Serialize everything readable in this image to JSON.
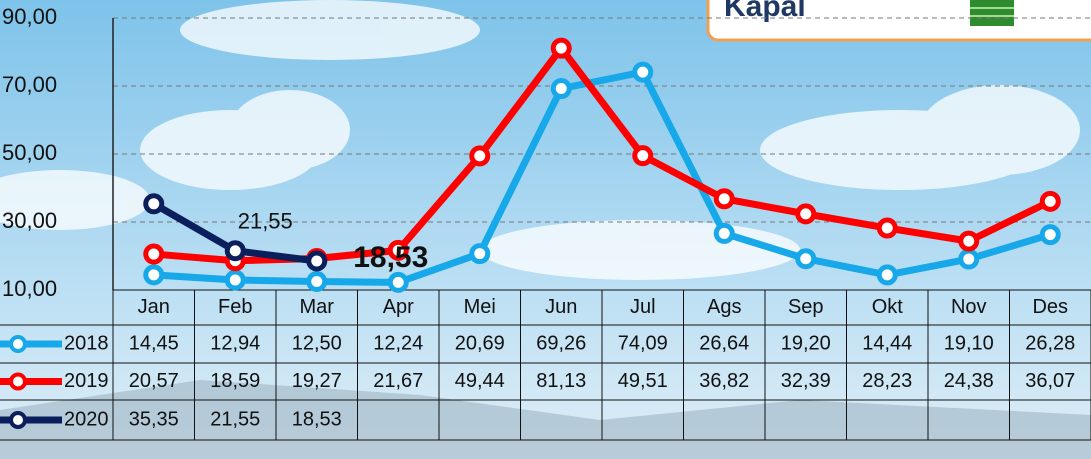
{
  "chart_data": {
    "type": "line",
    "categories": [
      "Jan",
      "Feb",
      "Mar",
      "Apr",
      "Mei",
      "Jun",
      "Jul",
      "Ags",
      "Sep",
      "Okt",
      "Nov",
      "Des"
    ],
    "series": [
      {
        "name": "2018",
        "color": "#16a8e8",
        "values": [
          14.45,
          12.94,
          12.5,
          12.24,
          20.69,
          69.26,
          74.09,
          26.64,
          19.2,
          14.44,
          19.1,
          26.28
        ],
        "value_labels": [
          "14,45",
          "12,94",
          "12,50",
          "12,24",
          "20,69",
          "69,26",
          "74,09",
          "26,64",
          "19,20",
          "14,44",
          "19,10",
          "26,28"
        ]
      },
      {
        "name": "2019",
        "color": "#ff0000",
        "values": [
          20.57,
          18.59,
          19.27,
          21.67,
          49.44,
          81.13,
          49.51,
          36.82,
          32.39,
          28.23,
          24.38,
          36.07
        ],
        "value_labels": [
          "20,57",
          "18,59",
          "19,27",
          "21,67",
          "49,44",
          "81,13",
          "49,51",
          "36,82",
          "32,39",
          "28,23",
          "24,38",
          "36,07"
        ]
      },
      {
        "name": "2020",
        "color": "#0b1f5c",
        "values": [
          35.35,
          21.55,
          18.53,
          null,
          null,
          null,
          null,
          null,
          null,
          null,
          null,
          null
        ],
        "value_labels": [
          "35,35",
          "21,55",
          "18,53",
          null,
          null,
          null,
          null,
          null,
          null,
          null,
          null,
          null
        ]
      }
    ],
    "ylim": [
      10,
      90
    ],
    "yticks": [
      {
        "value": 10,
        "label": "10,00"
      },
      {
        "value": 30,
        "label": "30,00"
      },
      {
        "value": 50,
        "label": "50,00"
      },
      {
        "value": 70,
        "label": "70,00"
      },
      {
        "value": 90,
        "label": "90,00"
      }
    ],
    "grid": true
  },
  "label_box": {
    "text": "Kapal"
  }
}
